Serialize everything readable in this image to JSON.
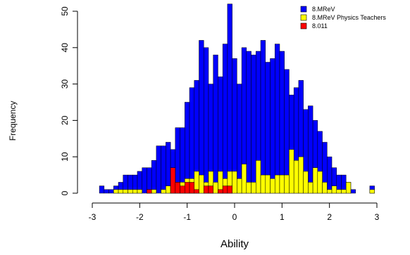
{
  "chart_data": {
    "type": "bar",
    "title": "",
    "xlabel": "Ability",
    "ylabel": "Frequency",
    "xlim": [
      -3,
      3
    ],
    "ylim": [
      0,
      52
    ],
    "x_ticks": [
      "-3",
      "-2",
      "-1",
      "0",
      "1",
      "2",
      "3"
    ],
    "y_ticks": [
      "0",
      "10",
      "20",
      "30",
      "40",
      "50"
    ],
    "bin_start": -2.85,
    "bin_width": 0.1,
    "legend_position": "top-right",
    "series": [
      {
        "name": "8.MReV",
        "color": "#0000FF",
        "values": [
          2,
          1,
          1,
          2,
          3,
          5,
          5,
          5,
          6,
          7,
          7,
          9,
          13,
          13,
          14,
          12,
          18,
          18,
          25,
          29,
          31,
          42,
          40,
          30,
          38,
          32,
          41,
          52,
          37,
          30,
          40,
          39,
          38,
          39,
          42,
          36,
          37,
          41,
          39,
          34,
          27,
          29,
          31,
          23,
          24,
          20,
          17,
          14,
          10,
          7,
          5,
          5,
          3,
          1,
          0,
          0,
          0,
          2
        ]
      },
      {
        "name": "8.MReV Physics Teachers",
        "color": "#FFFF00",
        "values": [
          0,
          0,
          0,
          1,
          1,
          1,
          1,
          1,
          1,
          0,
          1,
          1,
          0,
          1,
          2,
          7,
          3,
          3,
          4,
          4,
          6,
          5,
          3,
          6,
          3,
          6,
          4,
          6,
          6,
          4,
          8,
          3,
          3,
          9,
          5,
          5,
          4,
          5,
          5,
          5,
          12,
          9,
          10,
          6,
          3,
          7,
          6,
          3,
          1,
          2,
          1,
          1,
          3,
          0,
          0,
          0,
          0,
          1
        ]
      },
      {
        "name": "8.011",
        "color": "#FF0000",
        "values": [
          0,
          0,
          0,
          0,
          0,
          0,
          0,
          0,
          0,
          0,
          1,
          0,
          0,
          0,
          0,
          7,
          3,
          2,
          3,
          3,
          1,
          0,
          2,
          2,
          0,
          1,
          2,
          2,
          0,
          0,
          0,
          0,
          0,
          0,
          0,
          0,
          0,
          0,
          0,
          0,
          0,
          0,
          0,
          0,
          0,
          0,
          0,
          0,
          0,
          0,
          0,
          0,
          0,
          0,
          0,
          0,
          0,
          0
        ]
      }
    ]
  }
}
